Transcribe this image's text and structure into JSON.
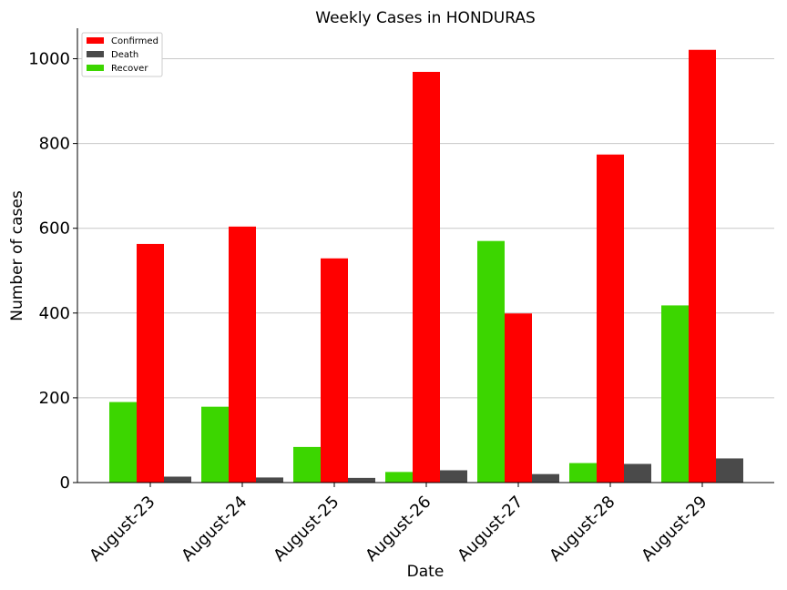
{
  "chart_data": {
    "type": "bar",
    "title": "Weekly Cases in HONDURAS",
    "xlabel": "Date",
    "ylabel": "Number of cases",
    "categories": [
      "August-23",
      "August-24",
      "August-25",
      "August-26",
      "August-27",
      "August-28",
      "August-29"
    ],
    "series": [
      {
        "name": "Recover",
        "color": "#3cd600",
        "values": [
          190,
          179,
          84,
          25,
          570,
          46,
          418
        ]
      },
      {
        "name": "Confirmed",
        "color": "#ff0000",
        "values": [
          563,
          604,
          529,
          969,
          399,
          774,
          1021
        ]
      },
      {
        "name": "Death",
        "color": "#4a4a4a",
        "values": [
          14,
          12,
          11,
          29,
          20,
          44,
          57
        ]
      }
    ],
    "legend_order": [
      "Confirmed",
      "Death",
      "Recover"
    ],
    "yticks": [
      0,
      200,
      400,
      600,
      800,
      1000
    ],
    "ylim": [
      0,
      1072
    ],
    "grid": "horizontal",
    "legend_position": "top-left"
  }
}
